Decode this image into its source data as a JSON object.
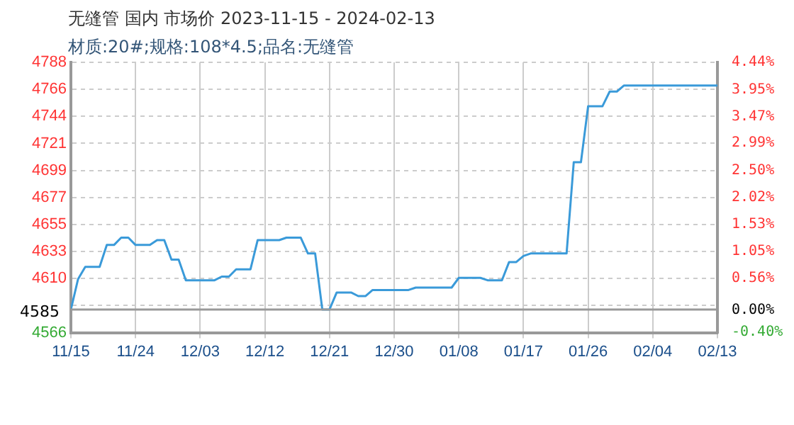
{
  "chart_data": {
    "type": "line",
    "title": "无缝管 国内 市场价 2023-11-15 - 2024-02-13",
    "subtitle": "材质:20#;规格:108*4.5;品名:无缝管",
    "x": [
      "2023-11-15",
      "2023-11-16",
      "2023-11-17",
      "2023-11-19",
      "2023-11-20",
      "2023-11-21",
      "2023-11-22",
      "2023-11-23",
      "2023-11-24",
      "2023-11-26",
      "2023-11-27",
      "2023-11-28",
      "2023-11-29",
      "2023-11-30",
      "2023-12-01",
      "2023-12-05",
      "2023-12-06",
      "2023-12-07",
      "2023-12-08",
      "2023-12-10",
      "2023-12-11",
      "2023-12-14",
      "2023-12-15",
      "2023-12-17",
      "2023-12-18",
      "2023-12-19",
      "2023-12-20",
      "2023-12-21",
      "2023-12-22",
      "2023-12-24",
      "2023-12-25",
      "2023-12-26",
      "2023-12-27",
      "2024-01-01",
      "2024-01-02",
      "2024-01-07",
      "2024-01-08",
      "2024-01-11",
      "2024-01-12",
      "2024-01-14",
      "2024-01-15",
      "2024-01-16",
      "2024-01-17",
      "2024-01-18",
      "2024-01-23",
      "2024-01-24",
      "2024-01-25",
      "2024-01-26",
      "2024-01-28",
      "2024-01-29",
      "2024-01-30",
      "2024-01-31",
      "2024-02-13"
    ],
    "series": [
      {
        "color": "#3a9ad9",
        "values": [
          4585,
          4610,
          4620,
          4620,
          4638,
          4638,
          4644,
          4644,
          4638,
          4638,
          4642,
          4642,
          4626,
          4626,
          4609,
          4609,
          4612,
          4612,
          4618,
          4618,
          4642,
          4642,
          4644,
          4644,
          4631,
          4631,
          4585,
          4585,
          4599,
          4599,
          4596,
          4596,
          4601,
          4601,
          4603,
          4603,
          4611,
          4611,
          4609,
          4609,
          4624,
          4624,
          4629,
          4631,
          4631,
          4706,
          4706,
          4752,
          4752,
          4764,
          4764,
          4769,
          4769
        ]
      }
    ],
    "xlim": [
      "2023-11-15",
      "2024-02-13"
    ],
    "xticks": [
      {
        "value": "2023-11-15",
        "label": "11/15"
      },
      {
        "value": "2023-11-24",
        "label": "11/24"
      },
      {
        "value": "2023-12-03",
        "label": "12/03"
      },
      {
        "value": "2023-12-12",
        "label": "12/12"
      },
      {
        "value": "2023-12-21",
        "label": "12/21"
      },
      {
        "value": "2023-12-30",
        "label": "12/30"
      },
      {
        "value": "2024-01-08",
        "label": "01/08"
      },
      {
        "value": "2024-01-17",
        "label": "01/17"
      },
      {
        "value": "2024-01-26",
        "label": "01/26"
      },
      {
        "value": "2024-02-04",
        "label": "02/04"
      },
      {
        "value": "2024-02-13",
        "label": "02/13"
      }
    ],
    "ylim": [
      4566,
      4788
    ],
    "yticks": [
      4566,
      {
        "value": 4588.2,
        "label": null
      },
      {
        "value": 4610.4,
        "label": "4610"
      },
      {
        "value": 4632.6,
        "label": "4633"
      },
      {
        "value": 4654.8,
        "label": "4655"
      },
      4677,
      {
        "value": 4699.2,
        "label": "4699"
      },
      {
        "value": 4721.4,
        "label": "4721"
      },
      {
        "value": 4743.6,
        "label": "4744"
      },
      {
        "value": 4765.8,
        "label": "4766"
      },
      4788
    ],
    "y2lim": [
      -0.41,
      4.44
    ],
    "y2ticks": [
      {
        "value": -0.4,
        "label": "-0.40%"
      },
      {
        "value": 0,
        "label": "0.00%"
      },
      {
        "value": 0.56,
        "label": "0.56%"
      },
      {
        "value": 1.05,
        "label": "1.05%"
      },
      {
        "value": 1.53,
        "label": "1.53%"
      },
      {
        "value": 2.02,
        "label": "2.02%"
      },
      {
        "value": 2.5,
        "label": "2.50%"
      },
      {
        "value": 2.99,
        "label": "2.99%"
      },
      {
        "value": 3.47,
        "label": "3.47%"
      },
      {
        "value": 3.95,
        "label": "3.95%"
      },
      {
        "value": 4.44,
        "label": "4.44%"
      }
    ],
    "ref_lines": [
      {
        "axis": "y",
        "value": 4585,
        "label": "4585",
        "color": "#999999",
        "line_style": "solid"
      }
    ],
    "grid": true,
    "legend": false,
    "marker": "none",
    "line_style": "solid"
  }
}
